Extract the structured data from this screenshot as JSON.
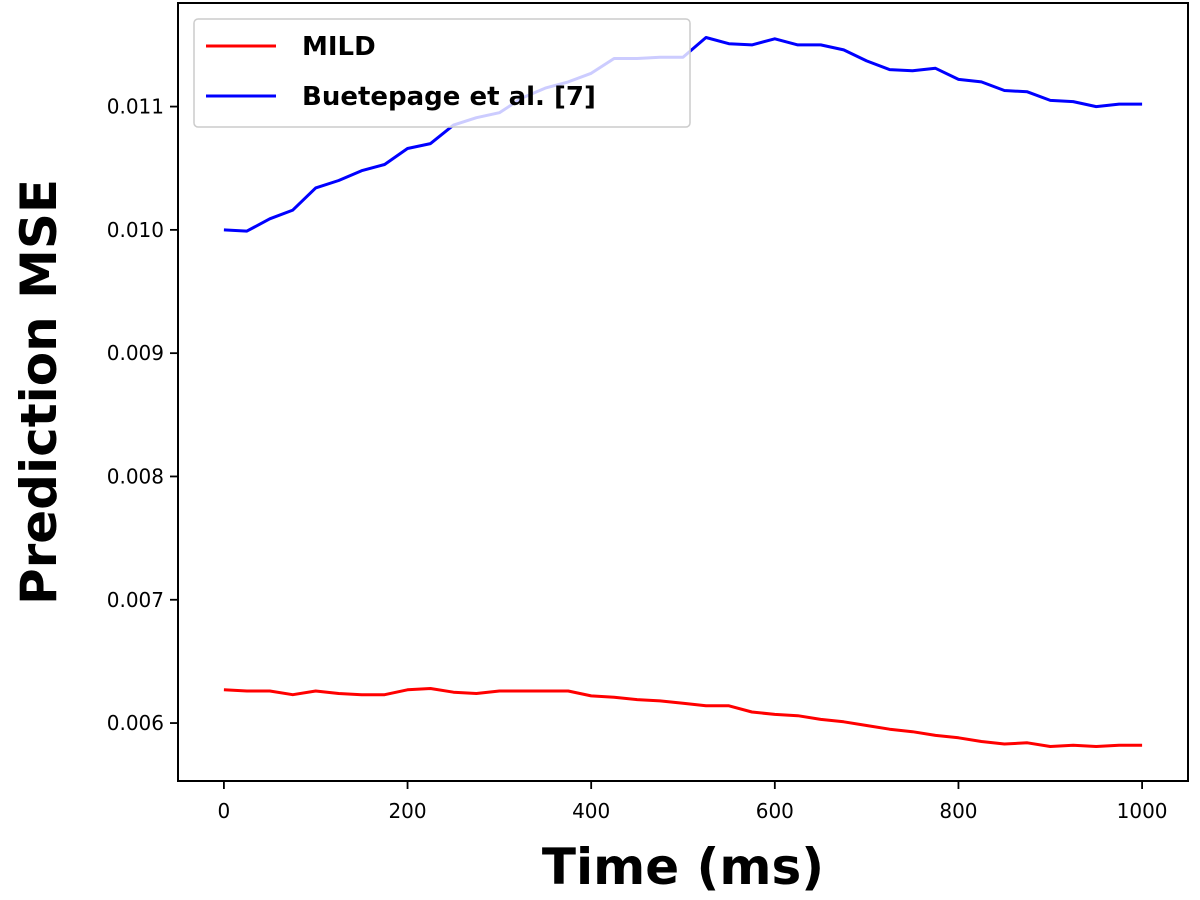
{
  "chart_data": {
    "type": "line",
    "title": "",
    "xlabel": "Time (ms)",
    "ylabel": "Prediction MSE",
    "xlim": [
      -50,
      1050
    ],
    "ylim": [
      0.00553,
      0.01184
    ],
    "xticks": [
      0,
      200,
      400,
      600,
      800,
      1000
    ],
    "xtick_labels": [
      "0",
      "200",
      "400",
      "600",
      "800",
      "1000"
    ],
    "yticks": [
      0.006,
      0.007,
      0.008,
      0.009,
      0.01,
      0.011
    ],
    "ytick_labels": [
      "0.006",
      "0.007",
      "0.008",
      "0.009",
      "0.010",
      "0.011"
    ],
    "grid": false,
    "legend_position": "top-left",
    "x": [
      0,
      25,
      50,
      75,
      100,
      125,
      150,
      175,
      200,
      225,
      250,
      275,
      300,
      325,
      350,
      375,
      400,
      425,
      450,
      475,
      500,
      525,
      550,
      575,
      600,
      625,
      650,
      675,
      700,
      725,
      750,
      775,
      800,
      825,
      850,
      875,
      900,
      925,
      950,
      975,
      1000
    ],
    "series": [
      {
        "name": "MILD",
        "color": "#ff0000",
        "values": [
          0.00627,
          0.00626,
          0.00626,
          0.00623,
          0.00626,
          0.00624,
          0.00623,
          0.00623,
          0.00627,
          0.00628,
          0.00625,
          0.00624,
          0.00626,
          0.00626,
          0.00626,
          0.00626,
          0.00622,
          0.00621,
          0.00619,
          0.00618,
          0.00616,
          0.00614,
          0.00614,
          0.00609,
          0.00607,
          0.00606,
          0.00603,
          0.00601,
          0.00598,
          0.00595,
          0.00593,
          0.0059,
          0.00588,
          0.00585,
          0.00583,
          0.00584,
          0.00581,
          0.00582,
          0.00581,
          0.00582,
          0.00582
        ]
      },
      {
        "name": "Buetepage et al. [7]",
        "color": "#0000ff",
        "values": [
          0.01,
          0.00999,
          0.01009,
          0.01016,
          0.01034,
          0.0104,
          0.01048,
          0.01053,
          0.01066,
          0.0107,
          0.01085,
          0.01091,
          0.01095,
          0.01107,
          0.01115,
          0.0112,
          0.01127,
          0.01139,
          0.01139,
          0.0114,
          0.0114,
          0.01156,
          0.01151,
          0.0115,
          0.01155,
          0.0115,
          0.0115,
          0.01146,
          0.01137,
          0.0113,
          0.01129,
          0.01131,
          0.01122,
          0.0112,
          0.01113,
          0.01112,
          0.01105,
          0.01104,
          0.011,
          0.01102,
          0.01102
        ]
      }
    ]
  }
}
